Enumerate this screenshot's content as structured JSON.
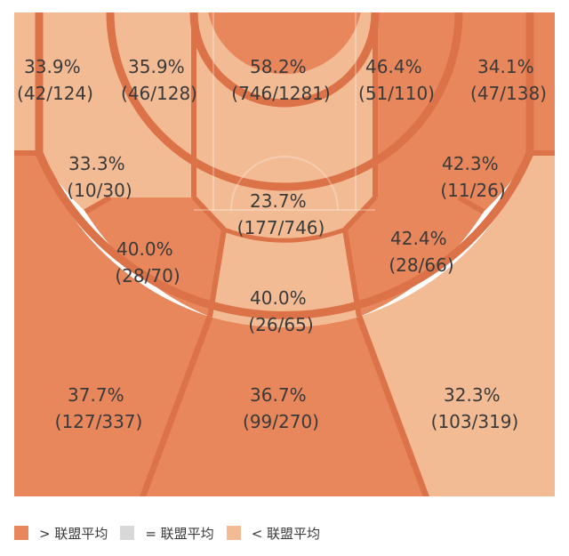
{
  "colors": {
    "above": "#e8865c",
    "equal": "#d8d8d8",
    "below": "#f2bb94",
    "line": "#dc7248",
    "text": "#3a3a3a"
  },
  "chart_data": {
    "type": "shot-chart",
    "zones": [
      {
        "id": "left-corner-three",
        "pct": "33.9%",
        "made": 42,
        "att": 124,
        "status": "below"
      },
      {
        "id": "left-midrange-baseline",
        "pct": "35.9%",
        "made": 46,
        "att": 128,
        "status": "below"
      },
      {
        "id": "paint",
        "pct": "58.2%",
        "made": 746,
        "att": 1281,
        "status": "above"
      },
      {
        "id": "right-midrange-baseline",
        "pct": "46.4%",
        "made": 51,
        "att": 110,
        "status": "above"
      },
      {
        "id": "right-corner-three",
        "pct": "34.1%",
        "made": 47,
        "att": 138,
        "status": "above"
      },
      {
        "id": "left-wing-midrange",
        "pct": "33.3%",
        "made": 10,
        "att": 30,
        "status": "below"
      },
      {
        "id": "free-throw-midrange",
        "pct": "23.7%",
        "made": 177,
        "att": 746,
        "status": "below"
      },
      {
        "id": "right-wing-midrange",
        "pct": "42.3%",
        "made": 11,
        "att": 26,
        "status": "above"
      },
      {
        "id": "left-elbow-midrange",
        "pct": "40.0%",
        "made": 28,
        "att": 70,
        "status": "above"
      },
      {
        "id": "right-elbow-midrange",
        "pct": "42.4%",
        "made": 28,
        "att": 66,
        "status": "above"
      },
      {
        "id": "top-key-midrange",
        "pct": "40.0%",
        "made": 26,
        "att": 65,
        "status": "below"
      },
      {
        "id": "left-wing-three",
        "pct": "37.7%",
        "made": 127,
        "att": 337,
        "status": "above"
      },
      {
        "id": "top-three",
        "pct": "36.7%",
        "made": 99,
        "att": 270,
        "status": "above"
      },
      {
        "id": "right-wing-three",
        "pct": "32.3%",
        "made": 103,
        "att": 319,
        "status": "below"
      }
    ]
  },
  "legend": [
    {
      "status": "above",
      "label": "> 联盟平均"
    },
    {
      "status": "equal",
      "label": "= 联盟平均"
    },
    {
      "status": "below",
      "label": "< 联盟平均"
    }
  ]
}
